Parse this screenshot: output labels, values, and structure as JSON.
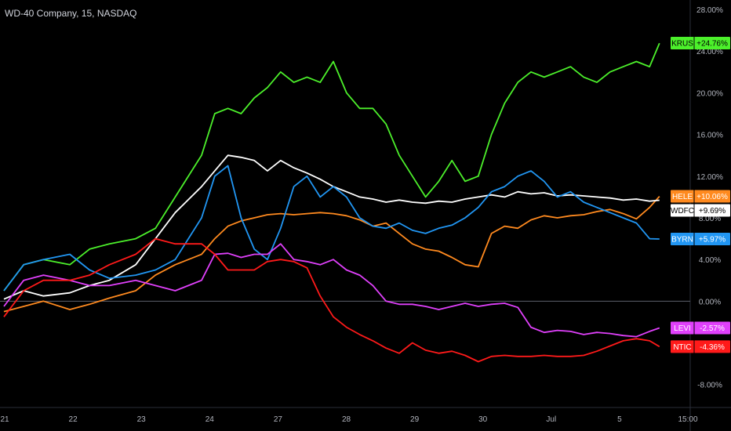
{
  "header": {
    "title": "WD-40 Company, 15, NASDAQ"
  },
  "chart_data": {
    "type": "line",
    "title": "WD-40 Company, 15, NASDAQ",
    "xlabel": "",
    "ylabel": "",
    "x_tick_labels": [
      "21",
      "22",
      "23",
      "24",
      "27",
      "28",
      "29",
      "30",
      "Jul",
      "5",
      "15:00"
    ],
    "y_tick_labels": [
      "28.00%",
      "24.00%",
      "20.00%",
      "16.00%",
      "12.00%",
      "8.00%",
      "4.00%",
      "0.00%",
      "-8.00%"
    ],
    "y_ticks": [
      28,
      24,
      20,
      16,
      12,
      8,
      4,
      0,
      -8
    ],
    "ylim": [
      -10.2,
      28.9
    ],
    "xlim": [
      0,
      10
    ],
    "zero_line": true,
    "legend": "right-edge value tags",
    "series": [
      {
        "name": "KRUS",
        "label": "+24.76%",
        "color": "#4cf02b",
        "text_color": "#000000",
        "x": [
          0,
          0.3,
          0.6,
          1,
          1.3,
          1.6,
          2,
          2.3,
          2.6,
          3,
          3.2,
          3.4,
          3.6,
          3.8,
          4,
          4.2,
          4.4,
          4.6,
          4.8,
          5,
          5.2,
          5.4,
          5.6,
          5.8,
          6,
          6.2,
          6.4,
          6.6,
          6.8,
          7,
          7.2,
          7.4,
          7.6,
          7.8,
          8,
          8.2,
          8.4,
          8.6,
          8.8,
          9,
          9.2,
          9.4,
          9.6,
          9.8,
          9.95
        ],
        "y": [
          1,
          3.5,
          4,
          3.5,
          5,
          5.5,
          6,
          7,
          10,
          14,
          18,
          18.5,
          18,
          19.5,
          20.5,
          22,
          21,
          21.5,
          21,
          23,
          20,
          18.5,
          18.5,
          17,
          14,
          12,
          10,
          11.5,
          13.5,
          11.5,
          12,
          16,
          19,
          21,
          22,
          21.5,
          22,
          22.5,
          21.5,
          21,
          22,
          22.5,
          23,
          22.5,
          24.76
        ]
      },
      {
        "name": "HELE",
        "label": "+10.06%",
        "color": "#ff8a1f",
        "text_color": "#ffffff",
        "x": [
          0,
          0.3,
          0.6,
          1,
          1.3,
          1.6,
          2,
          2.3,
          2.6,
          3,
          3.2,
          3.4,
          3.6,
          3.8,
          4,
          4.2,
          4.4,
          4.6,
          4.8,
          5,
          5.2,
          5.4,
          5.6,
          5.8,
          6,
          6.2,
          6.4,
          6.6,
          6.8,
          7,
          7.2,
          7.4,
          7.6,
          7.8,
          8,
          8.2,
          8.4,
          8.6,
          8.8,
          9,
          9.2,
          9.4,
          9.6,
          9.8,
          9.95
        ],
        "y": [
          -1,
          -0.5,
          0,
          -0.8,
          -0.3,
          0.3,
          1,
          2.5,
          3.5,
          4.5,
          6,
          7.2,
          7.7,
          8,
          8.3,
          8.4,
          8.3,
          8.4,
          8.5,
          8.4,
          8.2,
          7.8,
          7.2,
          7.5,
          6.5,
          5.5,
          5,
          4.8,
          4.2,
          3.5,
          3.3,
          6.5,
          7.2,
          7,
          7.8,
          8.2,
          8,
          8.2,
          8.3,
          8.6,
          8.8,
          8.4,
          7.9,
          9,
          10.06
        ]
      },
      {
        "name": "WDFC",
        "label": "+9.69%",
        "color": "#ffffff",
        "text_color": "#000000",
        "x": [
          0,
          0.3,
          0.6,
          1,
          1.3,
          1.6,
          2,
          2.3,
          2.6,
          3,
          3.2,
          3.4,
          3.6,
          3.8,
          4,
          4.2,
          4.4,
          4.6,
          4.8,
          5,
          5.2,
          5.4,
          5.6,
          5.8,
          6,
          6.2,
          6.4,
          6.6,
          6.8,
          7,
          7.2,
          7.4,
          7.6,
          7.8,
          8,
          8.2,
          8.4,
          8.6,
          8.8,
          9,
          9.2,
          9.4,
          9.6,
          9.8,
          9.95
        ],
        "y": [
          0.2,
          1,
          0.5,
          0.8,
          1.5,
          2,
          3.5,
          6,
          8.5,
          11,
          12.5,
          14,
          13.8,
          13.5,
          12.5,
          13.5,
          12.8,
          12.3,
          11.7,
          11,
          10.5,
          10,
          9.8,
          9.5,
          9.7,
          9.5,
          9.4,
          9.6,
          9.5,
          9.8,
          10,
          10.2,
          10,
          10.5,
          10.3,
          10.4,
          10.1,
          10.2,
          10.1,
          10,
          9.9,
          9.7,
          9.8,
          9.6,
          9.69
        ]
      },
      {
        "name": "BYRN",
        "label": "+5.97%",
        "color": "#2196f3",
        "text_color": "#ffffff",
        "x": [
          0,
          0.3,
          0.6,
          1,
          1.3,
          1.6,
          2,
          2.3,
          2.6,
          3,
          3.2,
          3.4,
          3.6,
          3.8,
          4,
          4.2,
          4.4,
          4.6,
          4.8,
          5,
          5.2,
          5.4,
          5.6,
          5.8,
          6,
          6.2,
          6.4,
          6.6,
          6.8,
          7,
          7.2,
          7.4,
          7.6,
          7.8,
          8,
          8.2,
          8.4,
          8.6,
          8.8,
          9,
          9.2,
          9.4,
          9.6,
          9.8,
          9.95
        ],
        "y": [
          1,
          3.5,
          4,
          4.5,
          3,
          2.2,
          2.5,
          3,
          4,
          8,
          12,
          13,
          8,
          5,
          4,
          7,
          11,
          12,
          10,
          11,
          10,
          8,
          7.2,
          7,
          7.5,
          6.8,
          6.5,
          7,
          7.3,
          8,
          9,
          10.5,
          11,
          12,
          12.5,
          11.5,
          10,
          10.5,
          9.5,
          9,
          8.5,
          8,
          7.5,
          6,
          5.97
        ]
      },
      {
        "name": "LEVI",
        "label": "-2.57%",
        "color": "#e040fb",
        "text_color": "#ffffff",
        "x": [
          0,
          0.3,
          0.6,
          1,
          1.3,
          1.6,
          2,
          2.3,
          2.6,
          3,
          3.2,
          3.4,
          3.6,
          3.8,
          4,
          4.2,
          4.4,
          4.6,
          4.8,
          5,
          5.2,
          5.4,
          5.6,
          5.8,
          6,
          6.2,
          6.4,
          6.6,
          6.8,
          7,
          7.2,
          7.4,
          7.6,
          7.8,
          8,
          8.2,
          8.4,
          8.6,
          8.8,
          9,
          9.2,
          9.4,
          9.6,
          9.8,
          9.95
        ],
        "y": [
          -0.5,
          2,
          2.5,
          2,
          1.5,
          1.5,
          2,
          1.5,
          1,
          2,
          4.5,
          4.6,
          4.2,
          4.5,
          4.5,
          5.5,
          4,
          3.8,
          3.5,
          4,
          3,
          2.5,
          1.5,
          0,
          -0.3,
          -0.3,
          -0.5,
          -0.8,
          -0.5,
          -0.2,
          -0.5,
          -0.3,
          -0.2,
          -0.6,
          -2.5,
          -3,
          -2.8,
          -2.9,
          -3.2,
          -3,
          -3.1,
          -3.3,
          -3.4,
          -2.9,
          -2.57
        ]
      },
      {
        "name": "NTIC",
        "label": "-4.36%",
        "color": "#ff1a1a",
        "text_color": "#ffffff",
        "x": [
          0,
          0.3,
          0.6,
          1,
          1.3,
          1.6,
          2,
          2.3,
          2.6,
          3,
          3.2,
          3.4,
          3.6,
          3.8,
          4,
          4.2,
          4.4,
          4.6,
          4.8,
          5,
          5.2,
          5.4,
          5.6,
          5.8,
          6,
          6.2,
          6.4,
          6.6,
          6.8,
          7,
          7.2,
          7.4,
          7.6,
          7.8,
          8,
          8.2,
          8.4,
          8.6,
          8.8,
          9,
          9.2,
          9.4,
          9.6,
          9.8,
          9.95
        ],
        "y": [
          -1.5,
          1,
          2,
          2,
          2.5,
          3.5,
          4.5,
          6,
          5.5,
          5.5,
          4.5,
          3,
          3,
          3,
          3.8,
          4,
          3.8,
          3.2,
          0.5,
          -1.5,
          -2.5,
          -3.2,
          -3.8,
          -4.5,
          -5,
          -4,
          -4.7,
          -5,
          -4.8,
          -5.2,
          -5.8,
          -5.3,
          -5.2,
          -5.3,
          -5.3,
          -5.2,
          -5.3,
          -5.3,
          -5.2,
          -4.8,
          -4.3,
          -3.8,
          -3.6,
          -3.8,
          -4.36
        ]
      }
    ]
  }
}
